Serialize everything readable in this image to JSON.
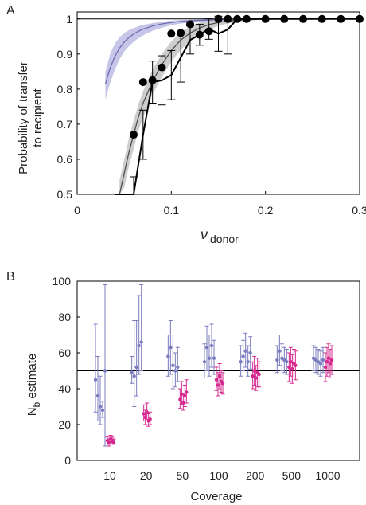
{
  "panels": [
    {
      "letter": "A",
      "chart_data": {
        "type": "line",
        "ylabel_lines": [
          "Probability of transfer",
          "to recipient"
        ],
        "xlabel_main": "ν",
        "xlabel_sub": "donor",
        "xlim": [
          0,
          0.3
        ],
        "ylim": [
          0.5,
          1.02
        ],
        "xticks": [
          0,
          0.1,
          0.2,
          0.3
        ],
        "xtick_labels": [
          "0",
          "0.1",
          "0.2",
          "0.3"
        ],
        "yticks": [
          0.5,
          0.6,
          0.7,
          0.8,
          0.9,
          1
        ],
        "ytick_labels": [
          "0.5",
          "0.6",
          "0.7",
          "0.8",
          "0.9",
          "1"
        ],
        "reference_line": 1,
        "colors": {
          "model_purple": "#6f6cb0",
          "band_purple": "#c7c6e8",
          "model_gray": "#505050",
          "band_gray": "#c4c4c4",
          "data": "#000000"
        },
        "series": [
          {
            "kind": "model_purple",
            "x": [
              0.03,
              0.035,
              0.04,
              0.045,
              0.05,
              0.055,
              0.06,
              0.065,
              0.07,
              0.08,
              0.09,
              0.1,
              0.11,
              0.12,
              0.13,
              0.15,
              0.17,
              0.19,
              0.22,
              0.25,
              0.3
            ],
            "y": [
              0.815,
              0.86,
              0.893,
              0.917,
              0.934,
              0.947,
              0.957,
              0.965,
              0.971,
              0.98,
              0.986,
              0.99,
              0.993,
              0.995,
              0.996,
              0.998,
              0.999,
              1.0,
              1.0,
              1.0,
              1.0
            ],
            "lower": [
              0.77,
              0.818,
              0.855,
              0.885,
              0.907,
              0.922,
              0.935,
              0.945,
              0.953,
              0.966,
              0.975,
              0.982,
              0.987,
              0.99,
              0.992,
              0.995,
              0.997,
              0.998,
              0.999,
              1.0,
              1.0
            ],
            "upper": [
              0.85,
              0.9,
              0.93,
              0.948,
              0.96,
              0.968,
              0.974,
              0.979,
              0.983,
              0.988,
              0.992,
              0.995,
              0.997,
              0.998,
              0.999,
              1.0,
              1.0,
              1.0,
              1.0,
              1.0,
              1.0
            ]
          },
          {
            "kind": "model_gray",
            "x": [
              0.045,
              0.05,
              0.055,
              0.06,
              0.065,
              0.07,
              0.08,
              0.09,
              0.1,
              0.11,
              0.12,
              0.13,
              0.14,
              0.15,
              0.16,
              0.18,
              0.2,
              0.25,
              0.3
            ],
            "y": [
              0.5,
              0.56,
              0.62,
              0.67,
              0.72,
              0.76,
              0.822,
              0.87,
              0.91,
              0.94,
              0.96,
              0.974,
              0.984,
              0.99,
              0.994,
              0.998,
              1.0,
              1.0,
              1.0
            ],
            "lower": [
              0.46,
              0.52,
              0.58,
              0.63,
              0.68,
              0.72,
              0.785,
              0.835,
              0.878,
              0.912,
              0.938,
              0.957,
              0.97,
              0.98,
              0.987,
              0.995,
              0.999,
              1.0,
              1.0
            ],
            "upper": [
              0.54,
              0.6,
              0.66,
              0.71,
              0.756,
              0.794,
              0.855,
              0.9,
              0.936,
              0.963,
              0.979,
              0.989,
              0.995,
              0.998,
              0.999,
              1.0,
              1.0,
              1.0,
              1.0
            ]
          },
          {
            "kind": "data",
            "x": [
              0.04,
              0.06,
              0.07,
              0.08,
              0.09,
              0.1,
              0.11,
              0.12,
              0.13,
              0.14,
              0.15,
              0.16,
              0.17,
              0.18,
              0.19,
              0.2,
              0.21,
              0.22,
              0.23,
              0.24,
              0.25,
              0.26,
              0.27,
              0.28,
              0.29,
              0.3
            ],
            "y": [
              0.3,
              0.49,
              0.67,
              0.82,
              0.825,
              0.84,
              0.89,
              0.94,
              0.955,
              0.972,
              0.958,
              0.97,
              1.0,
              1.0,
              1.0,
              1.0,
              1.0,
              1.0,
              1.0,
              1.0,
              1.0,
              1.0,
              1.0,
              1.0,
              1.0,
              1.0
            ],
            "err": [
              0.0,
              0.06,
              0.07,
              0.06,
              0.07,
              0.07,
              0.07,
              0.04,
              0.03,
              0.03,
              0.05,
              0.07,
              0.0,
              0.0,
              0.0,
              0.0,
              0.0,
              0.0,
              0.0,
              0.0,
              0.0,
              0.0,
              0.0,
              0.0,
              0.0,
              0.0
            ],
            "markers_x": [
              0.06,
              0.07,
              0.08,
              0.09,
              0.1,
              0.11,
              0.12,
              0.13,
              0.14,
              0.15,
              0.16,
              0.17,
              0.18,
              0.2,
              0.22,
              0.24,
              0.26,
              0.28,
              0.3
            ],
            "markers_y": [
              0.67,
              0.82,
              0.825,
              0.862,
              0.958,
              0.96,
              0.985,
              0.955,
              0.965,
              1.0,
              1.0,
              1.0,
              1.0,
              1.0,
              1.0,
              1.0,
              1.0,
              1.0,
              1.0
            ]
          }
        ]
      }
    },
    {
      "letter": "B",
      "chart_data": {
        "type": "scatter",
        "ylabel_main": "N",
        "ylabel_sub": "b",
        "ylabel_rest": " estimate",
        "xlabel": "Coverage",
        "ylim": [
          0,
          100
        ],
        "yticks": [
          0,
          20,
          40,
          60,
          80,
          100
        ],
        "ytick_labels": [
          "0",
          "20",
          "40",
          "60",
          "80",
          "100"
        ],
        "categories": [
          "10",
          "20",
          "50",
          "100",
          "200",
          "500",
          "1000"
        ],
        "reference_line": 50,
        "colors": {
          "purple": "#7b7bc0",
          "magenta": "#d6288e"
        },
        "series": [
          {
            "color": "purple",
            "groups": [
              {
                "points": [
                  {
                    "y": 45,
                    "lo": 27,
                    "hi": 76
                  },
                  {
                    "y": 36,
                    "lo": 22,
                    "hi": 58
                  },
                  {
                    "y": 30,
                    "lo": 20,
                    "hi": 47
                  },
                  {
                    "y": 28,
                    "lo": 24,
                    "hi": 33
                  },
                  {
                    "y": 50,
                    "lo": 8,
                    "hi": 98
                  }
                ]
              },
              {
                "points": [
                  {
                    "y": 49,
                    "lo": 43,
                    "hi": 58
                  },
                  {
                    "y": 47,
                    "lo": 30,
                    "hi": 78
                  },
                  {
                    "y": 52,
                    "lo": 36,
                    "hi": 78
                  },
                  {
                    "y": 64,
                    "lo": 48,
                    "hi": 92
                  },
                  {
                    "y": 66,
                    "lo": 50,
                    "hi": 98
                  }
                ]
              },
              {
                "points": [
                  {
                    "y": 58,
                    "lo": 47,
                    "hi": 70
                  },
                  {
                    "y": 63,
                    "lo": 48,
                    "hi": 78
                  },
                  {
                    "y": 53,
                    "lo": 40,
                    "hi": 70
                  },
                  {
                    "y": 50,
                    "lo": 41,
                    "hi": 60
                  },
                  {
                    "y": 52,
                    "lo": 44,
                    "hi": 63
                  }
                ]
              },
              {
                "points": [
                  {
                    "y": 55,
                    "lo": 46,
                    "hi": 65
                  },
                  {
                    "y": 63,
                    "lo": 50,
                    "hi": 75
                  },
                  {
                    "y": 57,
                    "lo": 47,
                    "hi": 70
                  },
                  {
                    "y": 64,
                    "lo": 52,
                    "hi": 76
                  },
                  {
                    "y": 57,
                    "lo": 48,
                    "hi": 67
                  }
                ]
              },
              {
                "points": [
                  {
                    "y": 55,
                    "lo": 47,
                    "hi": 64
                  },
                  {
                    "y": 58,
                    "lo": 50,
                    "hi": 67
                  },
                  {
                    "y": 61,
                    "lo": 52,
                    "hi": 71
                  },
                  {
                    "y": 55,
                    "lo": 47,
                    "hi": 64
                  },
                  {
                    "y": 60,
                    "lo": 51,
                    "hi": 69
                  }
                ]
              },
              {
                "points": [
                  {
                    "y": 56,
                    "lo": 49,
                    "hi": 64
                  },
                  {
                    "y": 61,
                    "lo": 53,
                    "hi": 70
                  },
                  {
                    "y": 57,
                    "lo": 50,
                    "hi": 65
                  },
                  {
                    "y": 56,
                    "lo": 49,
                    "hi": 63
                  },
                  {
                    "y": 55,
                    "lo": 48,
                    "hi": 62
                  }
                ]
              },
              {
                "points": [
                  {
                    "y": 57,
                    "lo": 50,
                    "hi": 64
                  },
                  {
                    "y": 56,
                    "lo": 49,
                    "hi": 63
                  },
                  {
                    "y": 55,
                    "lo": 48,
                    "hi": 62
                  },
                  {
                    "y": 54,
                    "lo": 47,
                    "hi": 61
                  },
                  {
                    "y": 56,
                    "lo": 49,
                    "hi": 63
                  }
                ]
              }
            ]
          },
          {
            "color": "magenta",
            "groups": [
              {
                "points": [
                  {
                    "y": 11,
                    "lo": 9,
                    "hi": 13
                  },
                  {
                    "y": 10,
                    "lo": 8,
                    "hi": 12
                  },
                  {
                    "y": 12,
                    "lo": 10,
                    "hi": 14
                  },
                  {
                    "y": 11,
                    "lo": 9,
                    "hi": 13
                  },
                  {
                    "y": 10,
                    "lo": 9,
                    "hi": 12
                  }
                ]
              },
              {
                "points": [
                  {
                    "y": 26,
                    "lo": 22,
                    "hi": 31
                  },
                  {
                    "y": 24,
                    "lo": 20,
                    "hi": 28
                  },
                  {
                    "y": 27,
                    "lo": 23,
                    "hi": 32
                  },
                  {
                    "y": 22,
                    "lo": 19,
                    "hi": 26
                  },
                  {
                    "y": 23,
                    "lo": 20,
                    "hi": 27
                  }
                ]
              },
              {
                "points": [
                  {
                    "y": 34,
                    "lo": 29,
                    "hi": 40
                  },
                  {
                    "y": 37,
                    "lo": 31,
                    "hi": 44
                  },
                  {
                    "y": 32,
                    "lo": 28,
                    "hi": 37
                  },
                  {
                    "y": 36,
                    "lo": 30,
                    "hi": 42
                  },
                  {
                    "y": 38,
                    "lo": 32,
                    "hi": 45
                  }
                ]
              },
              {
                "points": [
                  {
                    "y": 45,
                    "lo": 39,
                    "hi": 52
                  },
                  {
                    "y": 42,
                    "lo": 36,
                    "hi": 49
                  },
                  {
                    "y": 47,
                    "lo": 40,
                    "hi": 54
                  },
                  {
                    "y": 44,
                    "lo": 38,
                    "hi": 50
                  },
                  {
                    "y": 43,
                    "lo": 37,
                    "hi": 49
                  }
                ]
              },
              {
                "points": [
                  {
                    "y": 47,
                    "lo": 40,
                    "hi": 55
                  },
                  {
                    "y": 50,
                    "lo": 42,
                    "hi": 58
                  },
                  {
                    "y": 46,
                    "lo": 39,
                    "hi": 53
                  },
                  {
                    "y": 49,
                    "lo": 41,
                    "hi": 57
                  },
                  {
                    "y": 48,
                    "lo": 41,
                    "hi": 55
                  }
                ]
              },
              {
                "points": [
                  {
                    "y": 52,
                    "lo": 44,
                    "hi": 60
                  },
                  {
                    "y": 55,
                    "lo": 47,
                    "hi": 63
                  },
                  {
                    "y": 51,
                    "lo": 43,
                    "hi": 59
                  },
                  {
                    "y": 54,
                    "lo": 46,
                    "hi": 62
                  },
                  {
                    "y": 53,
                    "lo": 45,
                    "hi": 61
                  }
                ]
              },
              {
                "points": [
                  {
                    "y": 52,
                    "lo": 44,
                    "hi": 60
                  },
                  {
                    "y": 55,
                    "lo": 47,
                    "hi": 63
                  },
                  {
                    "y": 57,
                    "lo": 49,
                    "hi": 65
                  },
                  {
                    "y": 54,
                    "lo": 46,
                    "hi": 62
                  },
                  {
                    "y": 56,
                    "lo": 48,
                    "hi": 64
                  }
                ]
              }
            ]
          }
        ]
      }
    }
  ]
}
